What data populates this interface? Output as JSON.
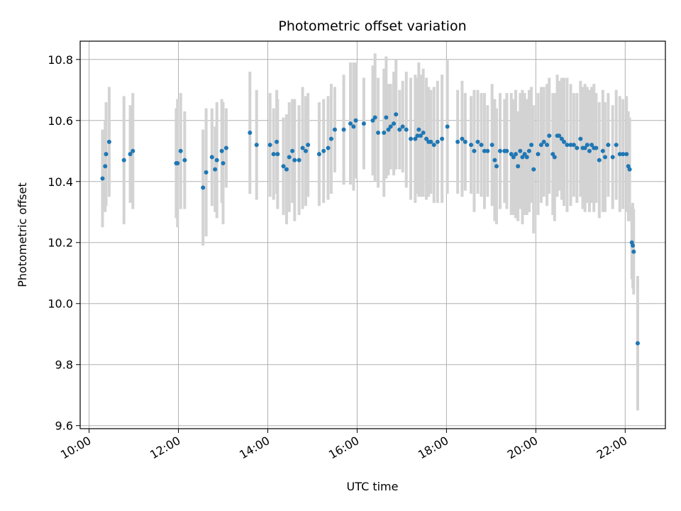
{
  "chart_data": {
    "type": "scatter",
    "title": "Photometric offset variation",
    "xlabel": "UTC time",
    "ylabel": "Photometric offset",
    "x_unit": "hours",
    "xlim": [
      9.8,
      22.9
    ],
    "ylim": [
      9.59,
      10.86
    ],
    "x_ticks": [
      {
        "value": 10,
        "label": "10:00"
      },
      {
        "value": 12,
        "label": "12:00"
      },
      {
        "value": 14,
        "label": "14:00"
      },
      {
        "value": 16,
        "label": "16:00"
      },
      {
        "value": 18,
        "label": "18:00"
      },
      {
        "value": 20,
        "label": "20:00"
      },
      {
        "value": 22,
        "label": "22:00"
      }
    ],
    "y_ticks": [
      {
        "value": 9.6,
        "label": "9.6"
      },
      {
        "value": 9.8,
        "label": "9.8"
      },
      {
        "value": 10.0,
        "label": "10.0"
      },
      {
        "value": 10.2,
        "label": "10.2"
      },
      {
        "value": 10.4,
        "label": "10.4"
      },
      {
        "value": 10.6,
        "label": "10.6"
      },
      {
        "value": 10.8,
        "label": "10.8"
      }
    ],
    "grid": true,
    "marker_color": "#1f77b4",
    "errorbar_color": "#d3d3d3",
    "series": [
      {
        "points": [
          [
            10.3,
            10.41,
            0.16
          ],
          [
            10.36,
            10.45,
            0.15
          ],
          [
            10.38,
            10.49,
            0.17
          ],
          [
            10.45,
            10.53,
            0.18
          ],
          [
            10.78,
            10.47,
            0.21
          ],
          [
            10.92,
            10.49,
            0.16
          ],
          [
            10.98,
            10.5,
            0.19
          ],
          [
            11.95,
            10.46,
            0.18
          ],
          [
            11.98,
            10.46,
            0.21
          ],
          [
            12.05,
            10.5,
            0.19
          ],
          [
            12.14,
            10.47,
            0.16
          ],
          [
            12.55,
            10.38,
            0.19
          ],
          [
            12.62,
            10.43,
            0.21
          ],
          [
            12.75,
            10.48,
            0.16
          ],
          [
            12.82,
            10.44,
            0.14
          ],
          [
            12.86,
            10.47,
            0.19
          ],
          [
            12.97,
            10.5,
            0.17
          ],
          [
            13.0,
            10.46,
            0.2
          ],
          [
            13.07,
            10.51,
            0.13
          ],
          [
            13.6,
            10.56,
            0.2
          ],
          [
            13.75,
            10.52,
            0.18
          ],
          [
            14.05,
            10.52,
            0.17
          ],
          [
            14.13,
            10.49,
            0.15
          ],
          [
            14.2,
            10.53,
            0.17
          ],
          [
            14.22,
            10.49,
            0.18
          ],
          [
            14.35,
            10.45,
            0.16
          ],
          [
            14.42,
            10.44,
            0.18
          ],
          [
            14.48,
            10.48,
            0.18
          ],
          [
            14.55,
            10.5,
            0.17
          ],
          [
            14.6,
            10.47,
            0.2
          ],
          [
            14.7,
            10.47,
            0.18
          ],
          [
            14.78,
            10.51,
            0.2
          ],
          [
            14.85,
            10.5,
            0.18
          ],
          [
            14.9,
            10.52,
            0.17
          ],
          [
            15.15,
            10.49,
            0.17
          ],
          [
            15.25,
            10.5,
            0.17
          ],
          [
            15.35,
            10.51,
            0.17
          ],
          [
            15.42,
            10.54,
            0.18
          ],
          [
            15.5,
            10.57,
            0.14
          ],
          [
            15.7,
            10.57,
            0.18
          ],
          [
            15.85,
            10.59,
            0.2
          ],
          [
            15.92,
            10.58,
            0.21
          ],
          [
            15.97,
            10.6,
            0.19
          ],
          [
            16.15,
            10.59,
            0.15
          ],
          [
            16.35,
            10.6,
            0.18
          ],
          [
            16.4,
            10.61,
            0.21
          ],
          [
            16.47,
            10.56,
            0.18
          ],
          [
            16.6,
            10.56,
            0.21
          ],
          [
            16.65,
            10.61,
            0.2
          ],
          [
            16.7,
            10.57,
            0.15
          ],
          [
            16.75,
            10.58,
            0.14
          ],
          [
            16.82,
            10.59,
            0.17
          ],
          [
            16.87,
            10.62,
            0.18
          ],
          [
            16.95,
            10.57,
            0.13
          ],
          [
            17.02,
            10.58,
            0.15
          ],
          [
            17.1,
            10.57,
            0.19
          ],
          [
            17.2,
            10.54,
            0.2
          ],
          [
            17.3,
            10.54,
            0.21
          ],
          [
            17.35,
            10.55,
            0.19
          ],
          [
            17.38,
            10.57,
            0.22
          ],
          [
            17.42,
            10.55,
            0.2
          ],
          [
            17.48,
            10.56,
            0.21
          ],
          [
            17.55,
            10.54,
            0.2
          ],
          [
            17.6,
            10.53,
            0.18
          ],
          [
            17.65,
            10.53,
            0.17
          ],
          [
            17.72,
            10.52,
            0.19
          ],
          [
            17.8,
            10.53,
            0.2
          ],
          [
            17.9,
            10.54,
            0.21
          ],
          [
            18.02,
            10.58,
            0.22
          ],
          [
            18.25,
            10.53,
            0.17
          ],
          [
            18.35,
            10.54,
            0.19
          ],
          [
            18.42,
            10.53,
            0.16
          ],
          [
            18.55,
            10.52,
            0.16
          ],
          [
            18.62,
            10.5,
            0.2
          ],
          [
            18.7,
            10.53,
            0.17
          ],
          [
            18.78,
            10.52,
            0.17
          ],
          [
            18.85,
            10.5,
            0.19
          ],
          [
            18.92,
            10.5,
            0.15
          ],
          [
            19.02,
            10.52,
            0.2
          ],
          [
            19.08,
            10.47,
            0.2
          ],
          [
            19.12,
            10.45,
            0.19
          ],
          [
            19.2,
            10.5,
            0.19
          ],
          [
            19.3,
            10.5,
            0.17
          ],
          [
            19.35,
            10.5,
            0.19
          ],
          [
            19.45,
            10.49,
            0.2
          ],
          [
            19.5,
            10.48,
            0.19
          ],
          [
            19.55,
            10.49,
            0.21
          ],
          [
            19.6,
            10.45,
            0.18
          ],
          [
            19.65,
            10.5,
            0.19
          ],
          [
            19.7,
            10.48,
            0.22
          ],
          [
            19.75,
            10.49,
            0.2
          ],
          [
            19.8,
            10.48,
            0.19
          ],
          [
            19.85,
            10.5,
            0.2
          ],
          [
            19.9,
            10.52,
            0.19
          ],
          [
            19.95,
            10.44,
            0.21
          ],
          [
            20.05,
            10.49,
            0.2
          ],
          [
            20.12,
            10.52,
            0.19
          ],
          [
            20.18,
            10.53,
            0.18
          ],
          [
            20.25,
            10.52,
            0.2
          ],
          [
            20.3,
            10.55,
            0.19
          ],
          [
            20.38,
            10.49,
            0.2
          ],
          [
            20.42,
            10.48,
            0.21
          ],
          [
            20.48,
            10.55,
            0.2
          ],
          [
            20.52,
            10.55,
            0.18
          ],
          [
            20.58,
            10.54,
            0.2
          ],
          [
            20.63,
            10.53,
            0.21
          ],
          [
            20.7,
            10.52,
            0.22
          ],
          [
            20.78,
            10.52,
            0.2
          ],
          [
            20.85,
            10.52,
            0.17
          ],
          [
            20.92,
            10.51,
            0.18
          ],
          [
            21.0,
            10.54,
            0.19
          ],
          [
            21.05,
            10.51,
            0.2
          ],
          [
            21.1,
            10.51,
            0.21
          ],
          [
            21.15,
            10.52,
            0.19
          ],
          [
            21.2,
            10.5,
            0.2
          ],
          [
            21.25,
            10.52,
            0.19
          ],
          [
            21.3,
            10.51,
            0.21
          ],
          [
            21.35,
            10.51,
            0.18
          ],
          [
            21.42,
            10.47,
            0.19
          ],
          [
            21.5,
            10.5,
            0.2
          ],
          [
            21.55,
            10.48,
            0.18
          ],
          [
            21.62,
            10.52,
            0.17
          ],
          [
            21.72,
            10.48,
            0.17
          ],
          [
            21.8,
            10.52,
            0.18
          ],
          [
            21.88,
            10.49,
            0.19
          ],
          [
            21.95,
            10.49,
            0.18
          ],
          [
            22.03,
            10.49,
            0.19
          ],
          [
            22.07,
            10.45,
            0.18
          ],
          [
            22.1,
            10.44,
            0.17
          ],
          [
            22.15,
            10.2,
            0.12
          ],
          [
            22.17,
            10.19,
            0.14
          ],
          [
            22.19,
            10.17,
            0.14
          ],
          [
            22.28,
            9.87,
            0.22
          ]
        ]
      }
    ]
  }
}
